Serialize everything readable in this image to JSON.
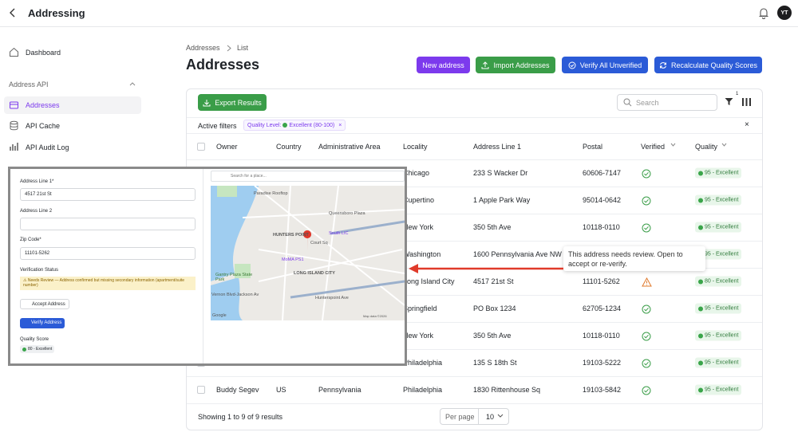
{
  "header": {
    "title": "Addressing",
    "avatar": "YT"
  },
  "sidebar": {
    "dashboard": "Dashboard",
    "section": "Address API",
    "items": [
      "Addresses",
      "API Cache",
      "API Audit Log"
    ]
  },
  "breadcrumb": [
    "Addresses",
    "List"
  ],
  "page_title": "Addresses",
  "buttons": {
    "new": "New address",
    "import": "Import Addresses",
    "verify_all": "Verify All Unverified",
    "recalculate": "Recalculate Quality Scores"
  },
  "toolbar": {
    "export": "Export Results",
    "search_placeholder": "Search",
    "filter_count": "1"
  },
  "active_filters": {
    "label": "Active filters",
    "chip_prefix": "Quality Level:",
    "chip_value": "Excellent (80-100)",
    "chip_close": "×",
    "clear": "×"
  },
  "table": {
    "columns": [
      "Owner",
      "Country",
      "Administrative Area",
      "Locality",
      "Address Line 1",
      "Postal",
      "Verified",
      "Quality"
    ],
    "rows": [
      {
        "locality": "Chicago",
        "address": "233 S Wacker Dr",
        "postal": "60606-7147",
        "status": "verified",
        "quality": "95 - Excellent"
      },
      {
        "locality": "Cupertino",
        "address": "1 Apple Park Way",
        "postal": "95014-0642",
        "status": "verified",
        "quality": "95 - Excellent"
      },
      {
        "locality": "New York",
        "address": "350 5th Ave",
        "postal": "10118-0110",
        "status": "verified",
        "quality": "95 - Excellent"
      },
      {
        "locality": "Washington",
        "address": "1600 Pennsylvania Ave NW",
        "status": "verified",
        "quality": "95 - Excellent"
      },
      {
        "locality": "Long Island City",
        "address": "4517 21st St",
        "postal": "11101-5262",
        "status": "review",
        "quality": "80 - Excellent"
      },
      {
        "locality": "Springfield",
        "address": "PO Box 1234",
        "postal": "62705-1234",
        "status": "verified",
        "quality": "95 - Excellent"
      },
      {
        "locality": "New York",
        "address": "350 5th Ave",
        "postal": "10118-0110",
        "status": "verified",
        "quality": "95 - Excellent"
      },
      {
        "locality": "Philadelphia",
        "address": "135 S 18th St",
        "postal": "19103-5222",
        "status": "verified",
        "quality": "95 - Excellent"
      },
      {
        "owner": "Buddy Segev",
        "country": "US",
        "area": "Pennsylvania",
        "locality": "Philadelphia",
        "address": "1830 Rittenhouse Sq",
        "postal": "19103-5842",
        "status": "verified",
        "quality": "95 - Excellent"
      }
    ]
  },
  "tooltip": "This address needs review. Open to accept or re-verify.",
  "footer": {
    "summary": "Showing 1 to 9 of 9 results",
    "per_page_label": "Per page",
    "per_page": "10"
  },
  "detail": {
    "address1_label": "Address Line 1*",
    "address1": "4517 21st St",
    "address2_label": "Address Line 2",
    "zip_label": "Zip Code*",
    "zip": "11101-5262",
    "status_label": "Verification Status",
    "status_message": "⚠ Needs Review — Address confirmed but missing secondary information (apartment/suite number)",
    "accept": "Accept Address",
    "verify": "Verify Address",
    "quality_label": "Quality Score",
    "quality": "80 - Excellent",
    "map": {
      "search": "Search for a place...",
      "labels": [
        "Paradise Rooftop",
        "Queensboro Plaza",
        "HUNTERS POINT",
        "South LIC",
        "Court Sq",
        "MoMA PS1",
        "LONG ISLAND CITY",
        "Gantry Plaza State Park",
        "Hunterspoint Ave",
        "Vernon Blvd-Jackson Av",
        "Google",
        "Map data ©2026"
      ]
    }
  }
}
